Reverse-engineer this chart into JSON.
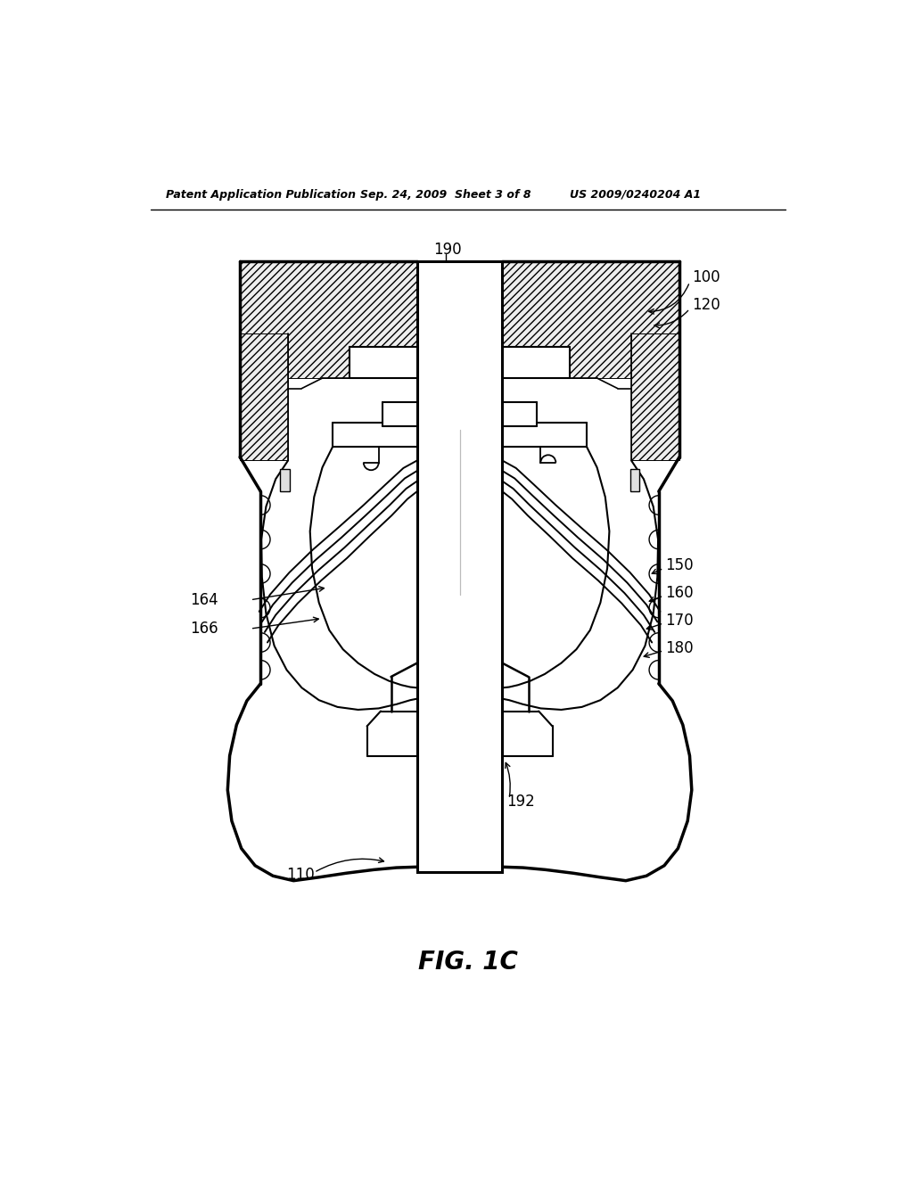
{
  "header_left": "Patent Application Publication",
  "header_center": "Sep. 24, 2009  Sheet 3 of 8",
  "header_right": "US 2009/0240204 A1",
  "figure_label": "FIG. 1C",
  "bg": "#ffffff",
  "lc": "#000000",
  "header_fontsize": 9,
  "label_fontsize": 12,
  "fig_label_fontsize": 20
}
